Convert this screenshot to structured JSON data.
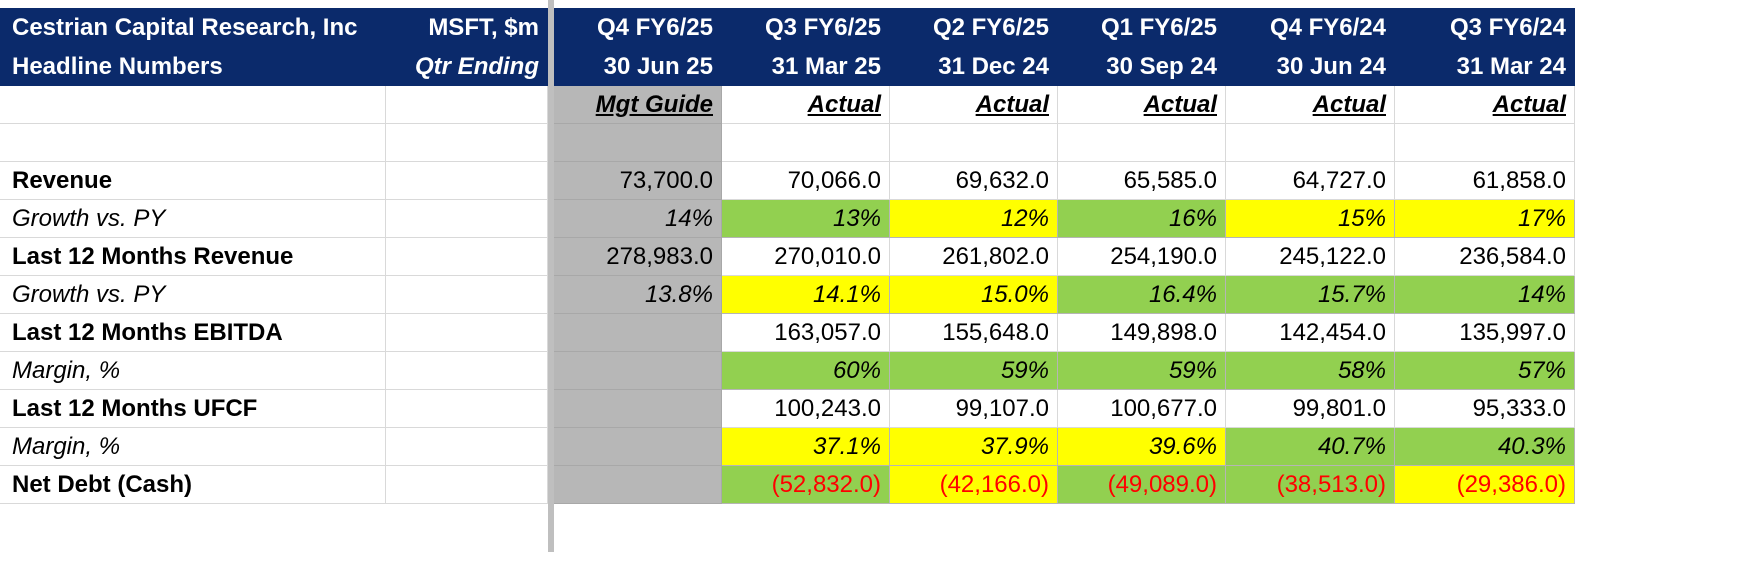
{
  "header": {
    "company_name": "Cestrian Capital Research, Inc",
    "subtitle": "Headline Numbers",
    "ticker_units": "MSFT, $m",
    "period_label": "Qtr Ending"
  },
  "columns": [
    {
      "quarter": "Q4 FY6/25",
      "date": "30 Jun 25",
      "basis": "Mgt Guide"
    },
    {
      "quarter": "Q3 FY6/25",
      "date": "31 Mar 25",
      "basis": "Actual"
    },
    {
      "quarter": "Q2 FY6/25",
      "date": "31 Dec 24",
      "basis": "Actual"
    },
    {
      "quarter": "Q1 FY6/25",
      "date": "30 Sep 24",
      "basis": "Actual"
    },
    {
      "quarter": "Q4 FY6/24",
      "date": "30 Jun 24",
      "basis": "Actual"
    },
    {
      "quarter": "Q3 FY6/24",
      "date": "31 Mar 24",
      "basis": "Actual"
    }
  ],
  "rows": [
    {
      "label": "Revenue",
      "style": "bold",
      "values": [
        "73,700.0",
        "70,066.0",
        "69,632.0",
        "65,585.0",
        "64,727.0",
        "61,858.0"
      ],
      "fills": [
        "gray",
        "",
        "",
        "",
        "",
        ""
      ]
    },
    {
      "label": "Growth vs. PY",
      "style": "italic",
      "values": [
        "14%",
        "13%",
        "12%",
        "16%",
        "15%",
        "17%"
      ],
      "fills": [
        "gray",
        "green",
        "yellow",
        "green",
        "yellow",
        "yellow"
      ]
    },
    {
      "label": "Last 12 Months Revenue",
      "style": "bold",
      "values": [
        "278,983.0",
        "270,010.0",
        "261,802.0",
        "254,190.0",
        "245,122.0",
        "236,584.0"
      ],
      "fills": [
        "gray",
        "",
        "",
        "",
        "",
        ""
      ]
    },
    {
      "label": "Growth vs. PY",
      "style": "italic",
      "values": [
        "13.8%",
        "14.1%",
        "15.0%",
        "16.4%",
        "15.7%",
        "14%"
      ],
      "fills": [
        "gray",
        "yellow",
        "yellow",
        "green",
        "green",
        "green"
      ]
    },
    {
      "label": "Last 12 Months EBITDA",
      "style": "bold",
      "values": [
        "",
        "163,057.0",
        "155,648.0",
        "149,898.0",
        "142,454.0",
        "135,997.0"
      ],
      "fills": [
        "gray",
        "",
        "",
        "",
        "",
        ""
      ]
    },
    {
      "label": "Margin, %",
      "style": "italic",
      "values": [
        "",
        "60%",
        "59%",
        "59%",
        "58%",
        "57%"
      ],
      "fills": [
        "gray",
        "green",
        "green",
        "green",
        "green",
        "green"
      ]
    },
    {
      "label": "Last 12 Months UFCF",
      "style": "bold",
      "values": [
        "",
        "100,243.0",
        "99,107.0",
        "100,677.0",
        "99,801.0",
        "95,333.0"
      ],
      "fills": [
        "gray",
        "",
        "",
        "",
        "",
        ""
      ]
    },
    {
      "label": "Margin, %",
      "style": "italic",
      "values": [
        "",
        "37.1%",
        "37.9%",
        "39.6%",
        "40.7%",
        "40.3%"
      ],
      "fills": [
        "gray",
        "yellow",
        "yellow",
        "yellow",
        "green",
        "green"
      ]
    },
    {
      "label": "Net Debt (Cash)",
      "style": "bold",
      "values": [
        "",
        "(52,832.0)",
        "(42,166.0)",
        "(49,089.0)",
        "(38,513.0)",
        "(29,386.0)"
      ],
      "fills": [
        "gray",
        "green",
        "yellow",
        "green",
        "green",
        "yellow"
      ],
      "red": true
    }
  ]
}
